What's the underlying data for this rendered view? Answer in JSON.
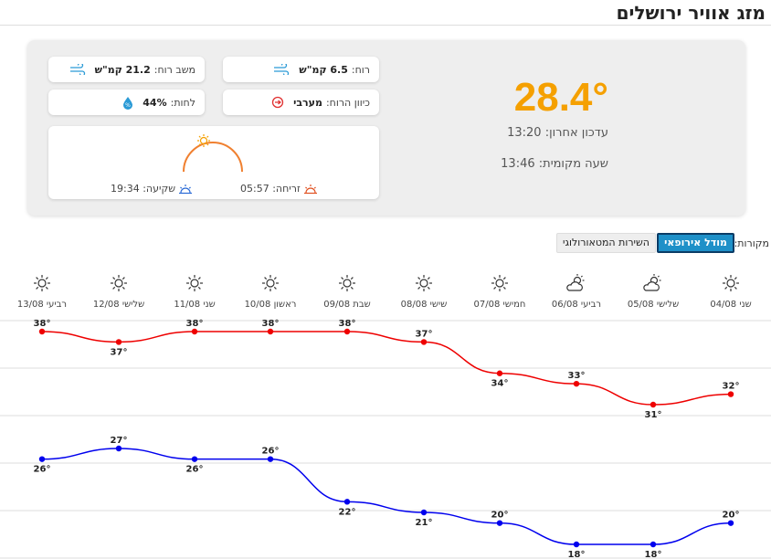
{
  "page": {
    "title": "מזג אוויר ירושלים"
  },
  "current": {
    "temperature": "28.4°",
    "updated_label": "עדכון אחרון:",
    "updated_time": "13:20",
    "local_label": "שעה מקומית:",
    "local_time": "13:46"
  },
  "stats": {
    "wind_label": "רוח:",
    "wind_value": "6.5 קמ\"ש",
    "gust_label": "משב רוח:",
    "gust_value": "21.2 קמ\"ש",
    "direction_label": "כיוון הרוח:",
    "direction_value": "מערבי",
    "humidity_label": "לחות:",
    "humidity_value": "44%"
  },
  "sun": {
    "sunrise_label": "זריחה:",
    "sunrise_time": "05:57",
    "sunset_label": "שקיעה:",
    "sunset_time": "19:34"
  },
  "sources": {
    "label": "מקורות:",
    "active": "מודל אירופאי",
    "inactive": "השירות המטאורולוגי"
  },
  "colors": {
    "accent": "#f5a000",
    "high": "#ee0000",
    "low": "#0000ee",
    "active_btn": "#1e90c8"
  },
  "days": [
    {
      "label": "שני 04/08",
      "icon": "sun-icon"
    },
    {
      "label": "שלישי 05/08",
      "icon": "partly-cloudy-icon"
    },
    {
      "label": "רביעי 06/08",
      "icon": "partly-cloudy-icon"
    },
    {
      "label": "חמישי 07/08",
      "icon": "sun-icon"
    },
    {
      "label": "שישי 08/08",
      "icon": "sun-icon"
    },
    {
      "label": "שבת 09/08",
      "icon": "sun-icon"
    },
    {
      "label": "ראשון 10/08",
      "icon": "sun-icon"
    },
    {
      "label": "שני 11/08",
      "icon": "sun-icon"
    },
    {
      "label": "שלישי 12/08",
      "icon": "sun-icon"
    },
    {
      "label": "רביעי 13/08",
      "icon": "sun-icon"
    }
  ],
  "chart_data": {
    "type": "line",
    "x": [
      "04/08",
      "05/08",
      "06/08",
      "07/08",
      "08/08",
      "09/08",
      "10/08",
      "11/08",
      "12/08",
      "13/08"
    ],
    "series": [
      {
        "values": [
          32,
          31,
          33,
          34,
          37,
          38,
          38,
          38,
          37,
          38
        ],
        "color": "#ee0000"
      },
      {
        "values": [
          20,
          18,
          18,
          20,
          21,
          22,
          26,
          26,
          27,
          26
        ],
        "color": "#0000ee"
      }
    ],
    "unit": "°"
  }
}
